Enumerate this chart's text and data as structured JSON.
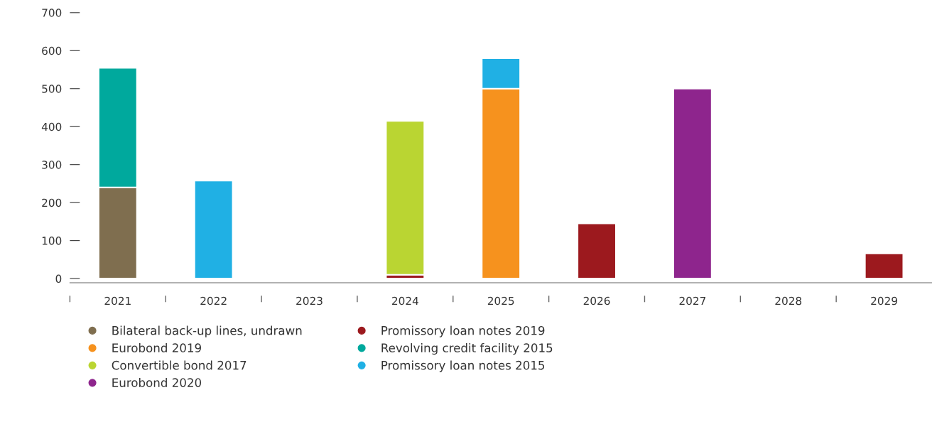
{
  "chart_data": {
    "type": "bar",
    "stacked": true,
    "categories": [
      "2021",
      "2022",
      "2023",
      "2024",
      "2025",
      "2026",
      "2027",
      "2028",
      "2029"
    ],
    "series": [
      {
        "name": "Bilateral back-up lines, undrawn",
        "color": "#7f6e4f",
        "values": [
          240,
          null,
          null,
          null,
          null,
          null,
          null,
          null,
          null
        ]
      },
      {
        "name": "Promissory loan notes 2019",
        "color": "#9c191e",
        "values": [
          null,
          null,
          null,
          10,
          null,
          145,
          null,
          null,
          66
        ]
      },
      {
        "name": "Eurobond 2019",
        "color": "#f6921e",
        "values": [
          null,
          null,
          null,
          null,
          500,
          null,
          null,
          null,
          null
        ]
      },
      {
        "name": "Revolving credit facility 2015",
        "color": "#00a99d",
        "values": [
          315,
          null,
          null,
          null,
          null,
          null,
          null,
          null,
          null
        ]
      },
      {
        "name": "Convertible bond 2017",
        "color": "#bad532",
        "values": [
          null,
          null,
          null,
          405,
          null,
          null,
          null,
          null,
          null
        ]
      },
      {
        "name": "Promissory loan notes 2015",
        "color": "#20b0e4",
        "values": [
          null,
          258,
          null,
          null,
          80,
          null,
          null,
          null,
          null
        ]
      },
      {
        "name": "Eurobond 2020",
        "color": "#8e258d",
        "values": [
          null,
          null,
          null,
          null,
          null,
          null,
          500,
          null,
          null
        ]
      }
    ],
    "ylim": [
      -11,
      700
    ],
    "yticks": [
      0,
      100,
      200,
      300,
      400,
      500,
      600,
      700
    ],
    "grid": false,
    "legend": "bottom left",
    "marker": "circle"
  }
}
